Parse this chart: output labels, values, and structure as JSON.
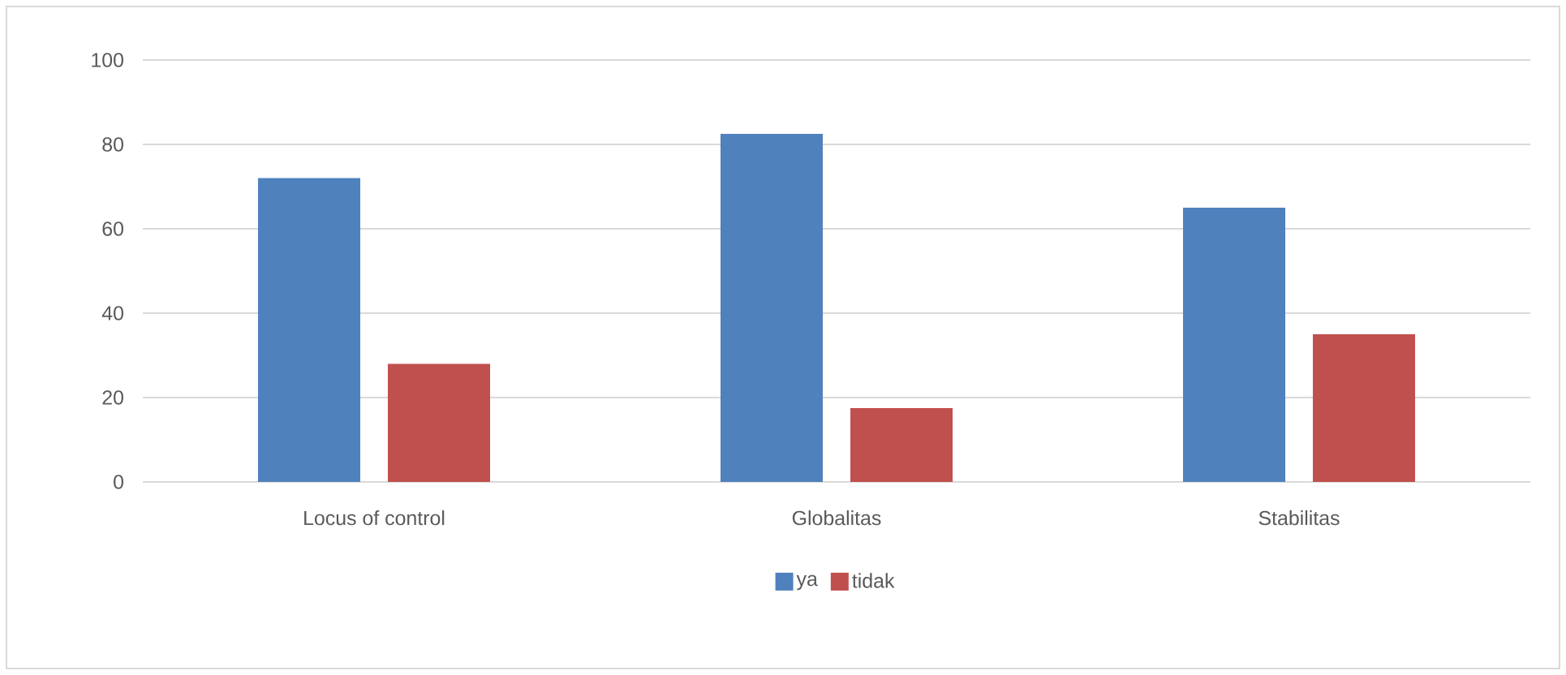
{
  "chart_data": {
    "type": "bar",
    "categories": [
      "Locus of control",
      "Globalitas",
      "Stabilitas"
    ],
    "series": [
      {
        "name": "ya",
        "color": "#4f81bd",
        "values": [
          72,
          82.5,
          65
        ]
      },
      {
        "name": "tidak",
        "color": "#c0504d",
        "values": [
          28,
          17.5,
          35
        ]
      }
    ],
    "ylim": [
      0,
      100
    ],
    "yticks": [
      0,
      20,
      40,
      60,
      80,
      100
    ],
    "grid": "y",
    "legend": "bottom"
  }
}
